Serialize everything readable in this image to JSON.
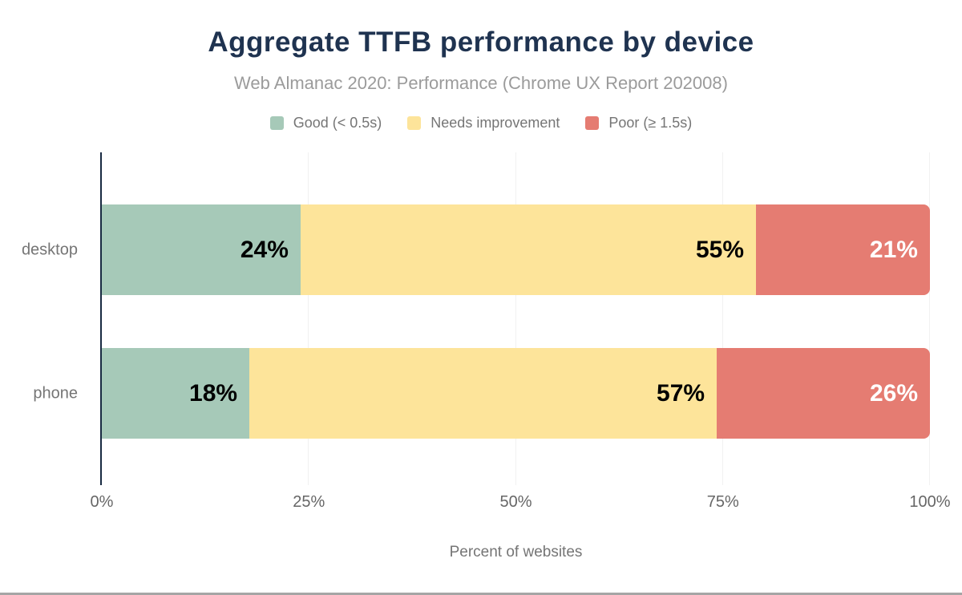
{
  "header": {
    "title": "Aggregate TTFB performance by device",
    "subtitle": "Web Almanac 2020: Performance (Chrome UX Report 202008)"
  },
  "legend": [
    {
      "label": "Good (< 0.5s)",
      "color": "#a6c9b8"
    },
    {
      "label": "Needs improvement",
      "color": "#fde49a"
    },
    {
      "label": "Poor (≥ 1.5s)",
      "color": "#e57c72"
    }
  ],
  "chart_data": {
    "type": "bar",
    "orientation": "horizontal-stacked",
    "title": "Aggregate TTFB performance by device",
    "subtitle": "Web Almanac 2020: Performance (Chrome UX Report 202008)",
    "categories": [
      "desktop",
      "phone"
    ],
    "series": [
      {
        "name": "Good (< 0.5s)",
        "color": "#a6c9b8",
        "label_color": "#000000",
        "values": [
          24,
          18
        ]
      },
      {
        "name": "Needs improvement",
        "color": "#fde49a",
        "label_color": "#000000",
        "values": [
          55,
          57
        ]
      },
      {
        "name": "Poor (≥ 1.5s)",
        "color": "#e57c72",
        "label_color": "#ffffff",
        "values": [
          21,
          26
        ]
      }
    ],
    "value_suffix": "%",
    "x_ticks": [
      "0%",
      "25%",
      "50%",
      "75%",
      "100%"
    ],
    "xlim": [
      0,
      100
    ],
    "xlabel": "Percent of websites",
    "grid": true,
    "legend_position": "top"
  },
  "colors": {
    "title": "#1f3350",
    "subtitle": "#9b9b9b",
    "axis_line": "#192a42",
    "gridline": "#f1f1f1",
    "tick_label": "#666666",
    "category_label": "#757575",
    "legend_label": "#757575",
    "bottom_border": "#a5a5a5",
    "background": "#ffffff"
  }
}
